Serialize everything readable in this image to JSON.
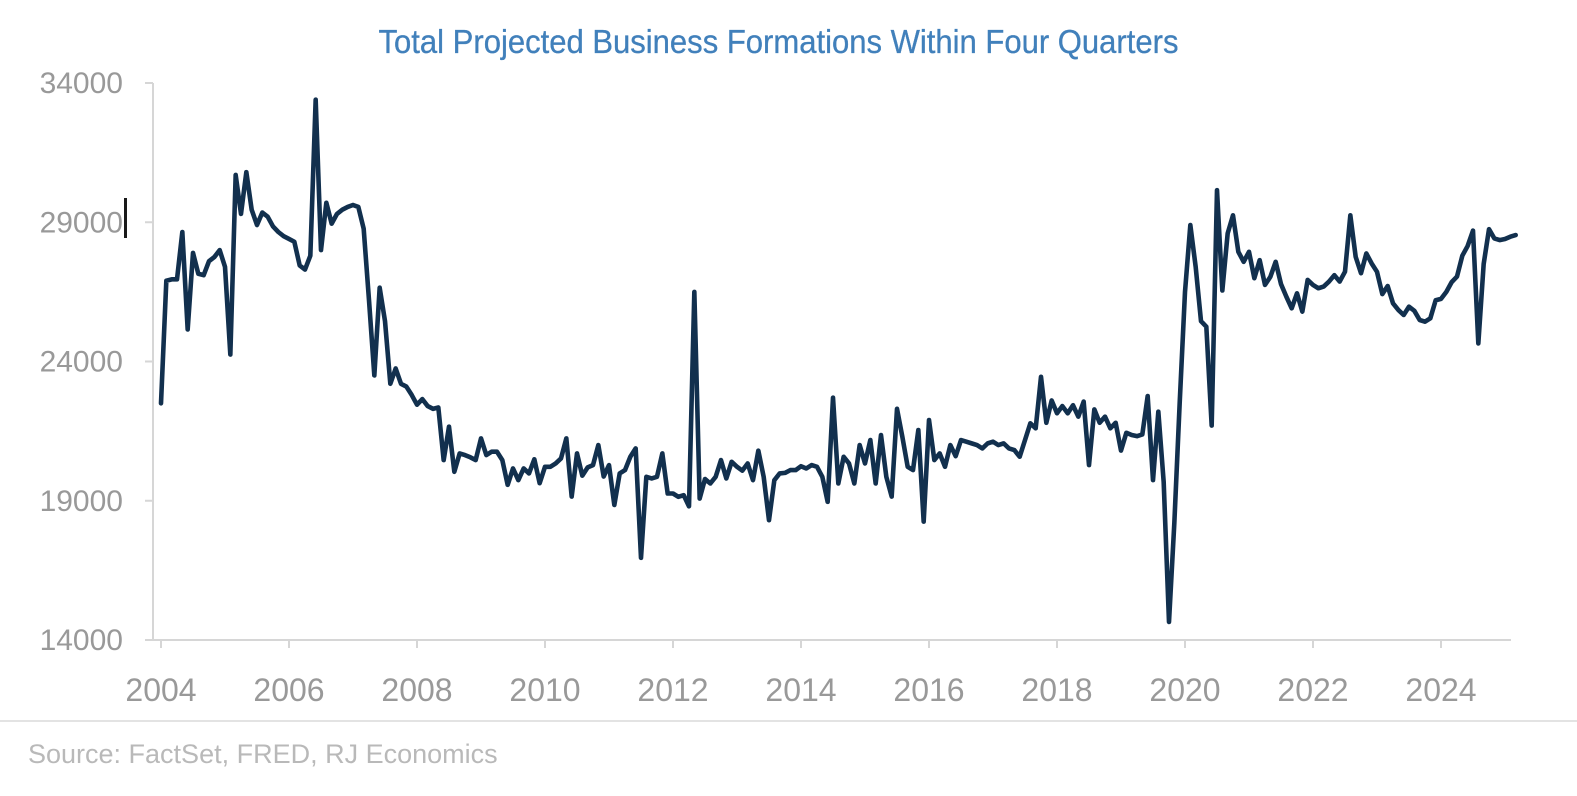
{
  "title": {
    "text": "Total Projected Business Formations Within Four Quarters",
    "color": "#4180bb"
  },
  "source": {
    "text": "Source: FactSet, FRED, RJ Economics",
    "color": "#b9b9b9"
  },
  "chart_data": {
    "type": "line",
    "title": "Total Projected Business Formations Within Four Quarters",
    "xlabel": "",
    "ylabel": "",
    "x_start": 2004.0,
    "x_step_months": 1,
    "x_ticks": [
      2004,
      2006,
      2008,
      2010,
      2012,
      2014,
      2016,
      2018,
      2020,
      2022,
      2024
    ],
    "y_ticks": [
      14000,
      19000,
      24000,
      29000,
      34000
    ],
    "ylim": [
      14000,
      34000
    ],
    "grid": false,
    "legend": "none",
    "line_color": "#12304e",
    "axis_color": "#d6d6d6",
    "tick_label_color": "#999999",
    "series": [
      {
        "name": "Total projected business formations within four quarters",
        "values": [
          22500,
          26900,
          26950,
          26950,
          28650,
          25150,
          27900,
          27150,
          27100,
          27600,
          27750,
          28000,
          27400,
          24250,
          30700,
          29300,
          30800,
          29450,
          28900,
          29350,
          29200,
          28850,
          28650,
          28500,
          28400,
          28300,
          27450,
          27300,
          27800,
          33400,
          28000,
          29700,
          28950,
          29300,
          29450,
          29550,
          29620,
          29550,
          28770,
          26200,
          23500,
          26650,
          25450,
          23200,
          23750,
          23200,
          23100,
          22800,
          22450,
          22650,
          22400,
          22300,
          22350,
          20460,
          21660,
          20040,
          20700,
          20640,
          20560,
          20460,
          21240,
          20640,
          20760,
          20760,
          20460,
          19570,
          20160,
          19740,
          20160,
          19980,
          20490,
          19630,
          20220,
          20220,
          20340,
          20520,
          21240,
          19150,
          20700,
          19900,
          20200,
          20280,
          21000,
          19870,
          20280,
          18850,
          19980,
          20100,
          20580,
          20880,
          16950,
          19860,
          19800,
          19860,
          20700,
          19260,
          19260,
          19140,
          19200,
          18800,
          26500,
          19080,
          19780,
          19620,
          19860,
          20460,
          19800,
          20400,
          20220,
          20080,
          20340,
          19740,
          20800,
          19860,
          18300,
          19740,
          19980,
          20000,
          20100,
          20100,
          20240,
          20160,
          20280,
          20220,
          19860,
          18960,
          22700,
          19620,
          20580,
          20340,
          19620,
          21000,
          20340,
          21180,
          19620,
          21360,
          19860,
          19150,
          22300,
          21300,
          20220,
          20100,
          21540,
          18250,
          21900,
          20460,
          20700,
          20220,
          21000,
          20600,
          21180,
          21120,
          21060,
          21000,
          20880,
          21060,
          21120,
          21000,
          21060,
          20880,
          20820,
          20580,
          21180,
          21780,
          21600,
          23450,
          21800,
          22600,
          22140,
          22400,
          22140,
          22430,
          22020,
          22560,
          20280,
          22280,
          21800,
          22020,
          21600,
          21800,
          20800,
          21440,
          21360,
          21320,
          21380,
          22760,
          19740,
          22200,
          19680,
          14650,
          18200,
          22500,
          26500,
          28900,
          27400,
          25450,
          25250,
          21700,
          30150,
          26550,
          28600,
          29250,
          27940,
          27580,
          27940,
          26990,
          27640,
          26750,
          27040,
          27580,
          26780,
          26330,
          25910,
          26450,
          25790,
          26930,
          26750,
          26630,
          26690,
          26870,
          27100,
          26870,
          27225,
          29250,
          27760,
          27170,
          27880,
          27520,
          27220,
          26420,
          26710,
          26090,
          25850,
          25670,
          25970,
          25820,
          25490,
          25430,
          25550,
          26200,
          26250,
          26500,
          26850,
          27050,
          27800,
          28150,
          28700,
          24650,
          27500,
          28750,
          28420,
          28360,
          28400,
          28480,
          28540
        ]
      }
    ]
  }
}
